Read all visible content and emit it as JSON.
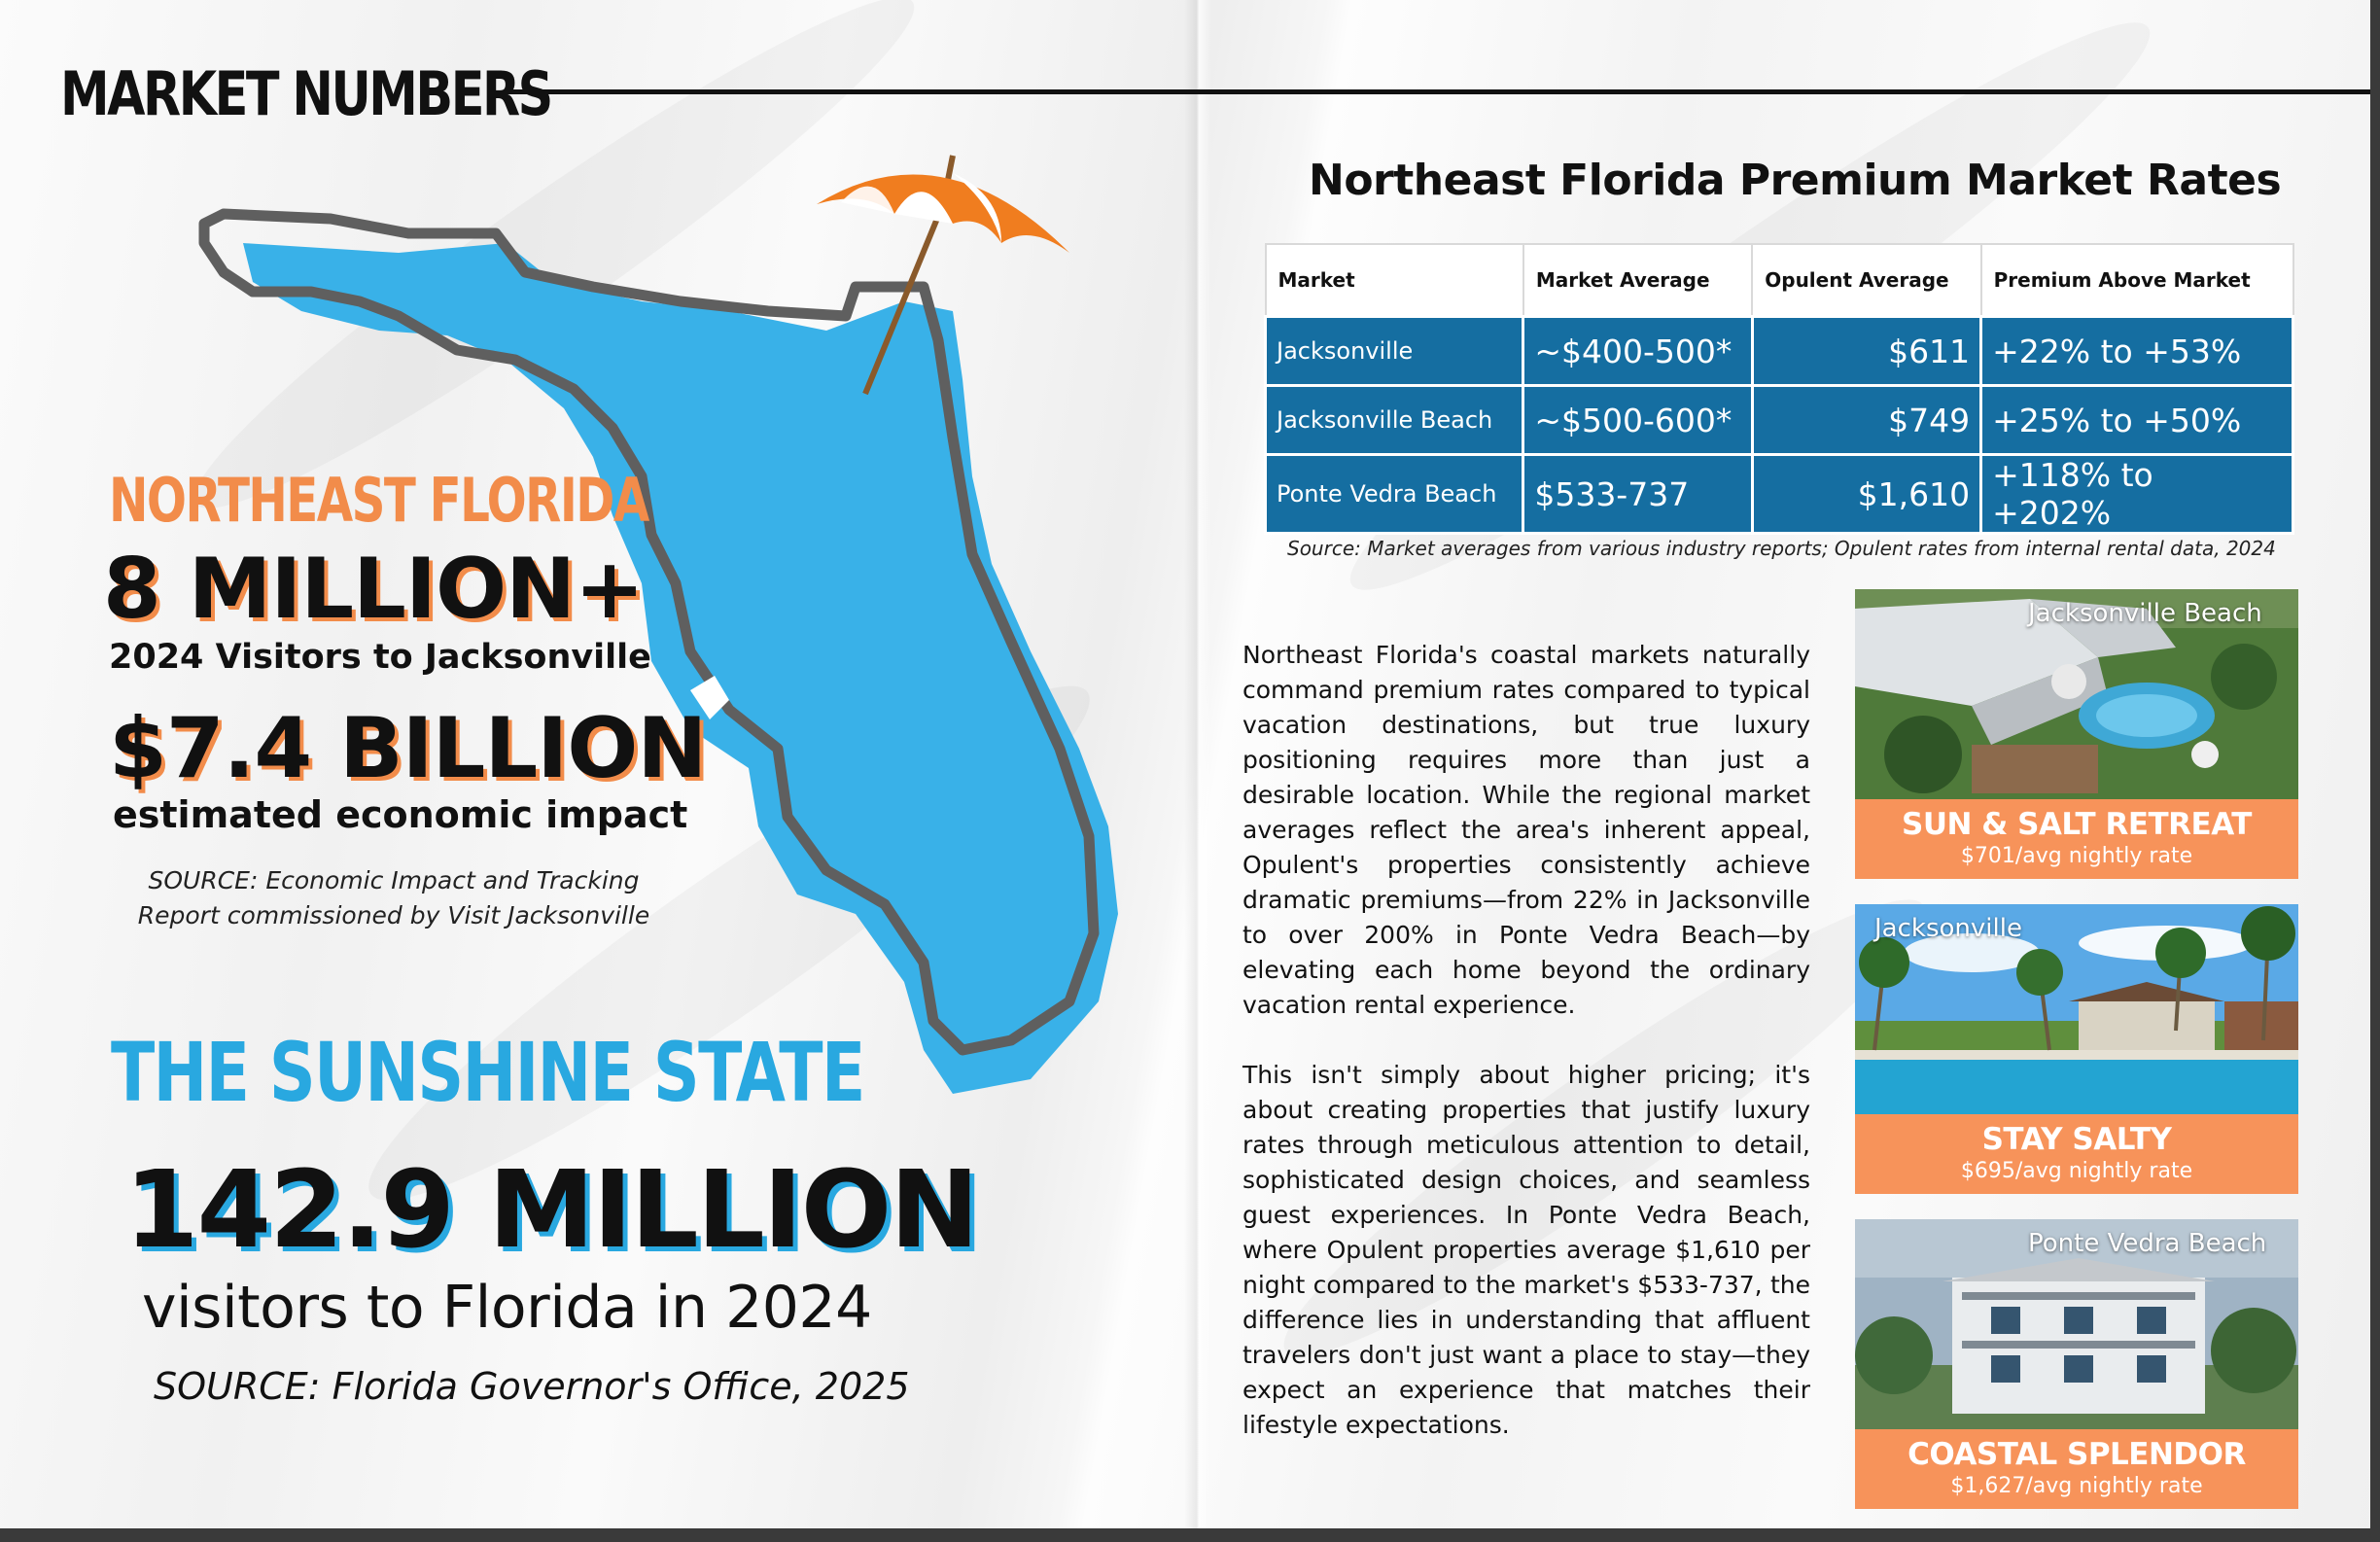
{
  "left_page": {
    "section_title": "MARKET NUMBERS",
    "ne_label": "NORTHEAST FLORIDA",
    "stat_visitors": "8 MILLION+",
    "stat_visitors_sub": "2024 Visitors to Jacksonville",
    "stat_impact": "$7.4 BILLION",
    "stat_impact_sub": "estimated economic impact",
    "source_line1": "SOURCE: Economic Impact and Tracking",
    "source_line2": "Report commissioned by Visit Jacksonville",
    "state_label": "THE SUNSHINE STATE",
    "stat_florida": "142.9 MILLION",
    "stat_florida_sub": "visitors to Florida in 2024",
    "source_florida": "SOURCE: Florida Governor's Office, 2025"
  },
  "right_page": {
    "table_title": "Northeast Florida Premium Market Rates",
    "table": {
      "headers": [
        "Market",
        "Market Average",
        "Opulent Average",
        "Premium Above Market"
      ],
      "rows": [
        [
          "Jacksonville",
          "~$400-500*",
          "$611",
          "+22% to +53%"
        ],
        [
          "Jacksonville Beach",
          "~$500-600*",
          "$749",
          "+25% to +50%"
        ],
        [
          "Ponte Vedra Beach",
          "$533-737",
          "$1,610",
          "+118% to +202%"
        ]
      ]
    },
    "table_source": "Source: Market averages from various industry reports; Opulent rates from internal rental data, 2024",
    "paragraph1": "Northeast Florida's coastal markets naturally command premium rates compared to typical vacation destinations, but true luxury positioning requires more than just a desirable location. While the regional market averages reflect the area's inherent appeal, Opulent's properties consistently achieve dramatic premiums—from 22% in Jacksonville to over 200% in Ponte Vedra Beach—by elevating each home beyond the ordinary vacation rental experience.",
    "paragraph2": "This isn't simply about higher pricing; it's about creating properties that justify luxury rates through meticulous attention to detail, sophisticated design choices, and seamless guest experiences. In Ponte Vedra Beach, where Opulent properties average $1,610 per night compared to the market's $533-737, the difference lies in understanding that affluent travelers don't just want a place to stay—they expect an experience that matches their lifestyle expectations.",
    "cards": [
      {
        "location": "Jacksonville Beach",
        "name": "SUN & SALT RETREAT",
        "rate": "$701/avg nightly rate"
      },
      {
        "location": "Jacksonville",
        "name": "STAY SALTY",
        "rate": "$695/avg nightly rate"
      },
      {
        "location": "Ponte Vedra Beach",
        "name": "COASTAL SPLENDOR",
        "rate": "$1,627/avg nightly rate"
      }
    ]
  },
  "colors": {
    "accent_orange": "#f28c4a",
    "accent_blue": "#29a8e0",
    "table_blue": "#156ea1",
    "map_blue": "#39b1e8",
    "card_band": "#f7935a"
  }
}
